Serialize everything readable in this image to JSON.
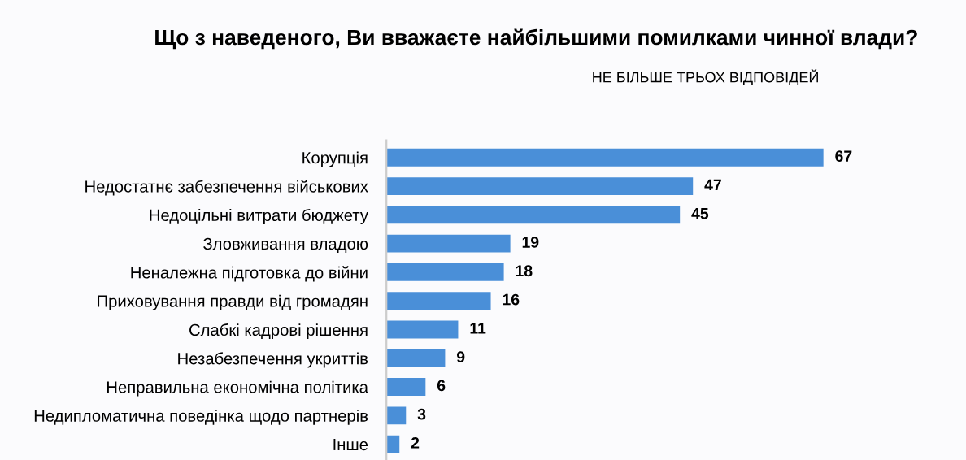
{
  "chart_data": {
    "type": "bar",
    "orientation": "horizontal",
    "title": "Що з наведеного, Ви вважаєте найбільшими помилками чинної влади?",
    "subtitle": "НЕ БІЛЬШЕ ТРЬОХ ВІДПОВІДЕЙ",
    "categories": [
      "Корупція",
      "Недостатнє забезпечення військових",
      "Недоцільні витрати бюджету",
      "Зловживання владою",
      "Неналежна підготовка до війни",
      "Приховування правди від громадян",
      "Слабкі кадрові рішення",
      "Незабезпечення укриттів",
      "Неправильна економічна політика",
      "Недипломатична поведінка щодо партнерів",
      "Інше"
    ],
    "values": [
      67,
      47,
      45,
      19,
      18,
      16,
      11,
      9,
      6,
      3,
      2
    ],
    "color": "#4a8fd8",
    "data_labels": true,
    "grid": false,
    "legend": false
  }
}
